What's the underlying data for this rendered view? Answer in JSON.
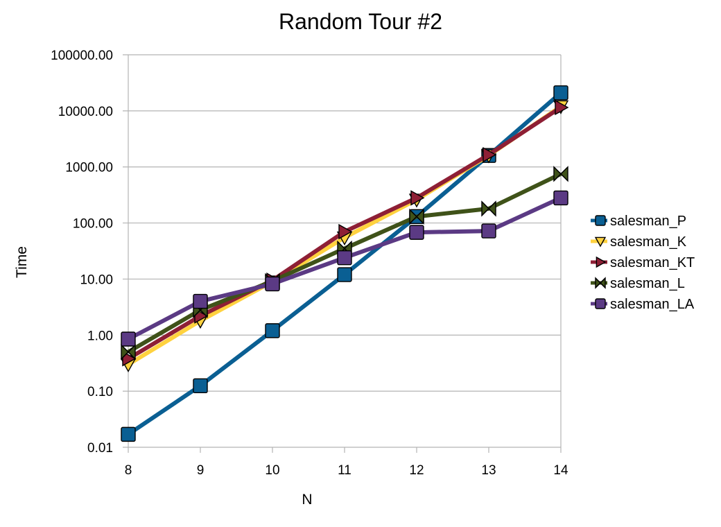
{
  "chart_data": {
    "type": "line",
    "title": "Random Tour #2",
    "xlabel": "N",
    "ylabel": "Time",
    "x": [
      8,
      9,
      10,
      11,
      12,
      13,
      14
    ],
    "x_tick_labels": [
      "8",
      "9",
      "10",
      "11",
      "12",
      "13",
      "14"
    ],
    "y_scale": "log",
    "ylim": [
      0.01,
      100000
    ],
    "y_tick_values": [
      0.01,
      0.1,
      1,
      10,
      100,
      1000,
      10000,
      100000
    ],
    "y_tick_labels": [
      "0.01",
      "0.10",
      "1.00",
      "10.00",
      "100.00",
      "1000.00",
      "10000.00",
      "100000.00"
    ],
    "grid": "horizontal",
    "legend_position": "right",
    "series": [
      {
        "name": "salesman_P",
        "color": "#0a5f93",
        "marker": "square",
        "values": [
          0.017,
          0.125,
          1.2,
          12,
          130,
          1600,
          21000
        ]
      },
      {
        "name": "salesman_K",
        "color": "#ffd23f",
        "marker": "triangle-down",
        "values": [
          0.3,
          1.8,
          9,
          55,
          260,
          1600,
          12000
        ]
      },
      {
        "name": "salesman_KT",
        "color": "#8e1f35",
        "marker": "triangle-right",
        "values": [
          0.38,
          2.2,
          9.5,
          70,
          280,
          1650,
          11500
        ]
      },
      {
        "name": "salesman_L",
        "color": "#3f5219",
        "marker": "bowtie",
        "values": [
          0.5,
          2.8,
          9.2,
          35,
          130,
          180,
          750
        ]
      },
      {
        "name": "salesman_LA",
        "color": "#5b3a84",
        "marker": "square",
        "values": [
          0.85,
          4.0,
          8.2,
          24,
          68,
          72,
          280
        ]
      }
    ]
  }
}
